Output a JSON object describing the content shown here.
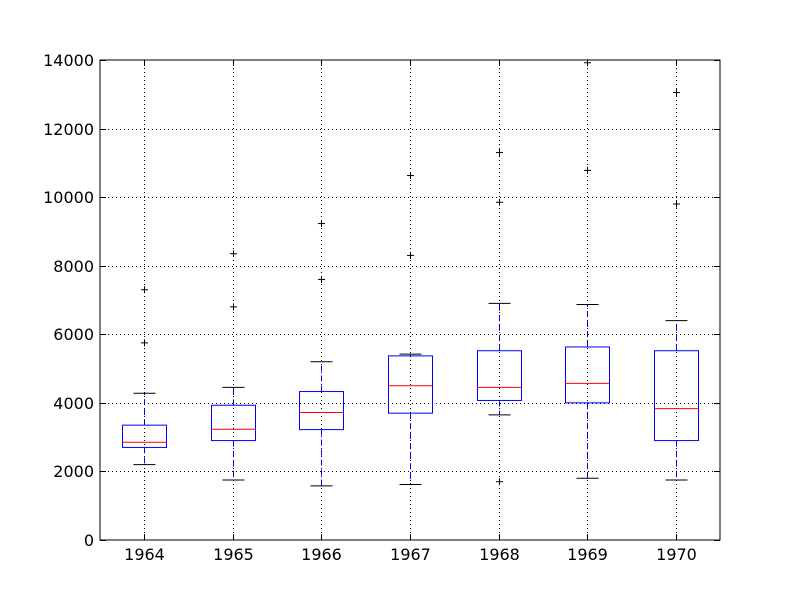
{
  "chart_data": {
    "type": "boxplot",
    "categories": [
      "1964",
      "1965",
      "1966",
      "1967",
      "1968",
      "1969",
      "1970"
    ],
    "ylim": [
      0,
      14000
    ],
    "yticks": [
      0,
      2000,
      4000,
      6000,
      8000,
      10000,
      12000,
      14000
    ],
    "ytick_labels": [
      "0",
      "2000",
      "4000",
      "6000",
      "8000",
      "10000",
      "12000",
      "14000"
    ],
    "grid": true,
    "grid_style": "dotted",
    "box_color": "#0000ff",
    "median_color": "#ff0000",
    "whisker_color": "#0000ff",
    "cap_color": "#000000",
    "flier_color": "#000000",
    "boxes": [
      {
        "category": "1964",
        "whisker_low": 2200,
        "q1": 2700,
        "median": 2850,
        "q3": 3350,
        "whisker_high": 4280,
        "fliers": [
          5750,
          7300
        ]
      },
      {
        "category": "1965",
        "whisker_low": 1750,
        "q1": 2900,
        "median": 3230,
        "q3": 3930,
        "whisker_high": 4450,
        "fliers": [
          6800,
          8350
        ]
      },
      {
        "category": "1966",
        "whisker_low": 1580,
        "q1": 3220,
        "median": 3720,
        "q3": 4330,
        "whisker_high": 5200,
        "fliers": [
          7600,
          9230
        ]
      },
      {
        "category": "1967",
        "whisker_low": 1620,
        "q1": 3700,
        "median": 4500,
        "q3": 5370,
        "whisker_high": 5420,
        "fliers": [
          8300,
          10630
        ]
      },
      {
        "category": "1968",
        "whisker_low": 3650,
        "q1": 4070,
        "median": 4450,
        "q3": 5520,
        "whisker_high": 6900,
        "fliers": [
          1700,
          9850,
          11300
        ]
      },
      {
        "category": "1969",
        "whisker_low": 1800,
        "q1": 4000,
        "median": 4570,
        "q3": 5630,
        "whisker_high": 6870,
        "fliers": [
          10780,
          13920
        ]
      },
      {
        "category": "1970",
        "whisker_low": 1750,
        "q1": 2900,
        "median": 3830,
        "q3": 5520,
        "whisker_high": 6400,
        "fliers": [
          9800,
          13050
        ]
      }
    ]
  }
}
